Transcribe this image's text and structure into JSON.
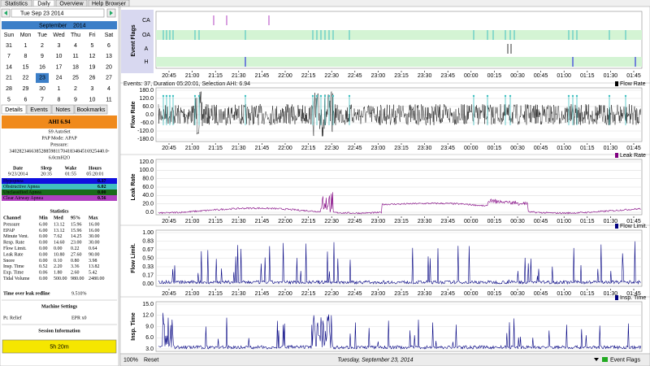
{
  "top_tabs": [
    "Statistics",
    "Daily",
    "Overview",
    "Help Browser"
  ],
  "nav": {
    "date": "Tue Sep 23 2014"
  },
  "calendar": {
    "month": "September",
    "year": "2014",
    "weekdays": [
      "Sun",
      "Mon",
      "Tue",
      "Wed",
      "Thu",
      "Fri",
      "Sat"
    ],
    "weeks": [
      [
        "31",
        "1",
        "2",
        "3",
        "4",
        "5",
        "6"
      ],
      [
        "7",
        "8",
        "9",
        "10",
        "11",
        "12",
        "13"
      ],
      [
        "14",
        "15",
        "16",
        "17",
        "18",
        "19",
        "20"
      ],
      [
        "21",
        "22",
        "23",
        "24",
        "25",
        "26",
        "27"
      ],
      [
        "28",
        "29",
        "30",
        "1",
        "2",
        "3",
        "4"
      ],
      [
        "5",
        "6",
        "7",
        "8",
        "9",
        "10",
        "11"
      ]
    ]
  },
  "detail_tabs": [
    "Details",
    "Events",
    "Notes",
    "Bookmarks"
  ],
  "ahi": "AHI 6.94",
  "machine": [
    "S9 AutoSet",
    "PAP Mode: APAP",
    "Pressure:",
    "340282346638528859811704183484516925440.0-",
    "6.0cmH2O"
  ],
  "session_table": {
    "headers": [
      "Date",
      "Sleep",
      "Wake",
      "Hours"
    ],
    "row": [
      "9/23/2014",
      "20:35",
      "01:55",
      "05:20:01"
    ]
  },
  "indices": [
    {
      "name": "Hypopnea",
      "value": "0.37",
      "color": "#1010e0"
    },
    {
      "name": "Obstructive Apnea",
      "value": "6.02",
      "color": "#40c0c0"
    },
    {
      "name": "Unclassified Apnea",
      "value": "0.00",
      "color": "#1a6a1a"
    },
    {
      "name": "Clear Airway Apnea",
      "value": "0.56",
      "color": "#b040c0"
    }
  ],
  "statistics": {
    "title": "Statistics",
    "headers": [
      "Channel",
      "Min",
      "Med",
      "95%",
      "Max"
    ],
    "rows": [
      [
        "Pressure",
        "6.00",
        "13.12",
        "15.96",
        "16.00"
      ],
      [
        "EPAP",
        "6.00",
        "13.12",
        "15.96",
        "16.00"
      ],
      [
        "Minute Vent.",
        "0.00",
        "7.62",
        "14.25",
        "30.00"
      ],
      [
        "Resp. Rate",
        "0.00",
        "14.60",
        "23.00",
        "30.00"
      ],
      [
        "Flow Limit.",
        "0.00",
        "0.00",
        "0.22",
        "0.64"
      ],
      [
        "Leak Rate",
        "0.00",
        "10.80",
        "27.60",
        "90.00"
      ],
      [
        "Snore",
        "0.00",
        "0.10",
        "0.80",
        "3.98"
      ],
      [
        "Insp. Time",
        "0.52",
        "2.20",
        "3.36",
        "13.82"
      ],
      [
        "Exp. Time",
        "0.06",
        "1.80",
        "2.60",
        "5.42"
      ],
      [
        "Tidal Volume",
        "0.00",
        "500.00",
        "980.00",
        "2480.00"
      ]
    ]
  },
  "leak_redline": {
    "label": "Time over leak redline",
    "value": "9.510%"
  },
  "machine_settings": {
    "title": "Machine Settings",
    "rows": [
      [
        "Pr. Relief",
        "EPR x0"
      ]
    ]
  },
  "session_info": {
    "title": "Session Information",
    "bar": "5h 20m"
  },
  "event_flags": {
    "title": "Event Flags",
    "rows": [
      "CA",
      "OA",
      "A",
      "H"
    ]
  },
  "summary": "Events: 37, Duration 05:20:01, Selection AHI: 6.94",
  "graphs": [
    {
      "title": "Flow Rate",
      "yticks": [
        "180.0",
        "120.0",
        "60.0",
        "0.0",
        "-60.0",
        "-120.0",
        "-180.0"
      ]
    },
    {
      "title": "Leak Rate",
      "yticks": [
        "120.0",
        "100.0",
        "80.0",
        "60.0",
        "40.0",
        "20.0",
        "0.0"
      ]
    },
    {
      "title": "Flow Limit.",
      "yticks": [
        "1.00",
        "0.83",
        "0.67",
        "0.50",
        "0.33",
        "0.17",
        "0.00"
      ]
    },
    {
      "title": "Insp. Time",
      "yticks": [
        "15.0",
        "12.0",
        "9.0",
        "6.0",
        "3.0"
      ]
    }
  ],
  "time_ticks": [
    "20:45",
    "21:00",
    "21:15",
    "21:30",
    "21:45",
    "22:00",
    "22:15",
    "22:30",
    "22:45",
    "23:00",
    "23:15",
    "23:30",
    "23:45",
    "00:00",
    "00:15",
    "00:30",
    "00:45",
    "01:00",
    "01:15",
    "01:30",
    "01:45"
  ],
  "status": {
    "zoom": "100%",
    "reset": "Reset",
    "date": "Tuesday, September 23, 2014",
    "layers": "Event Flags"
  }
}
